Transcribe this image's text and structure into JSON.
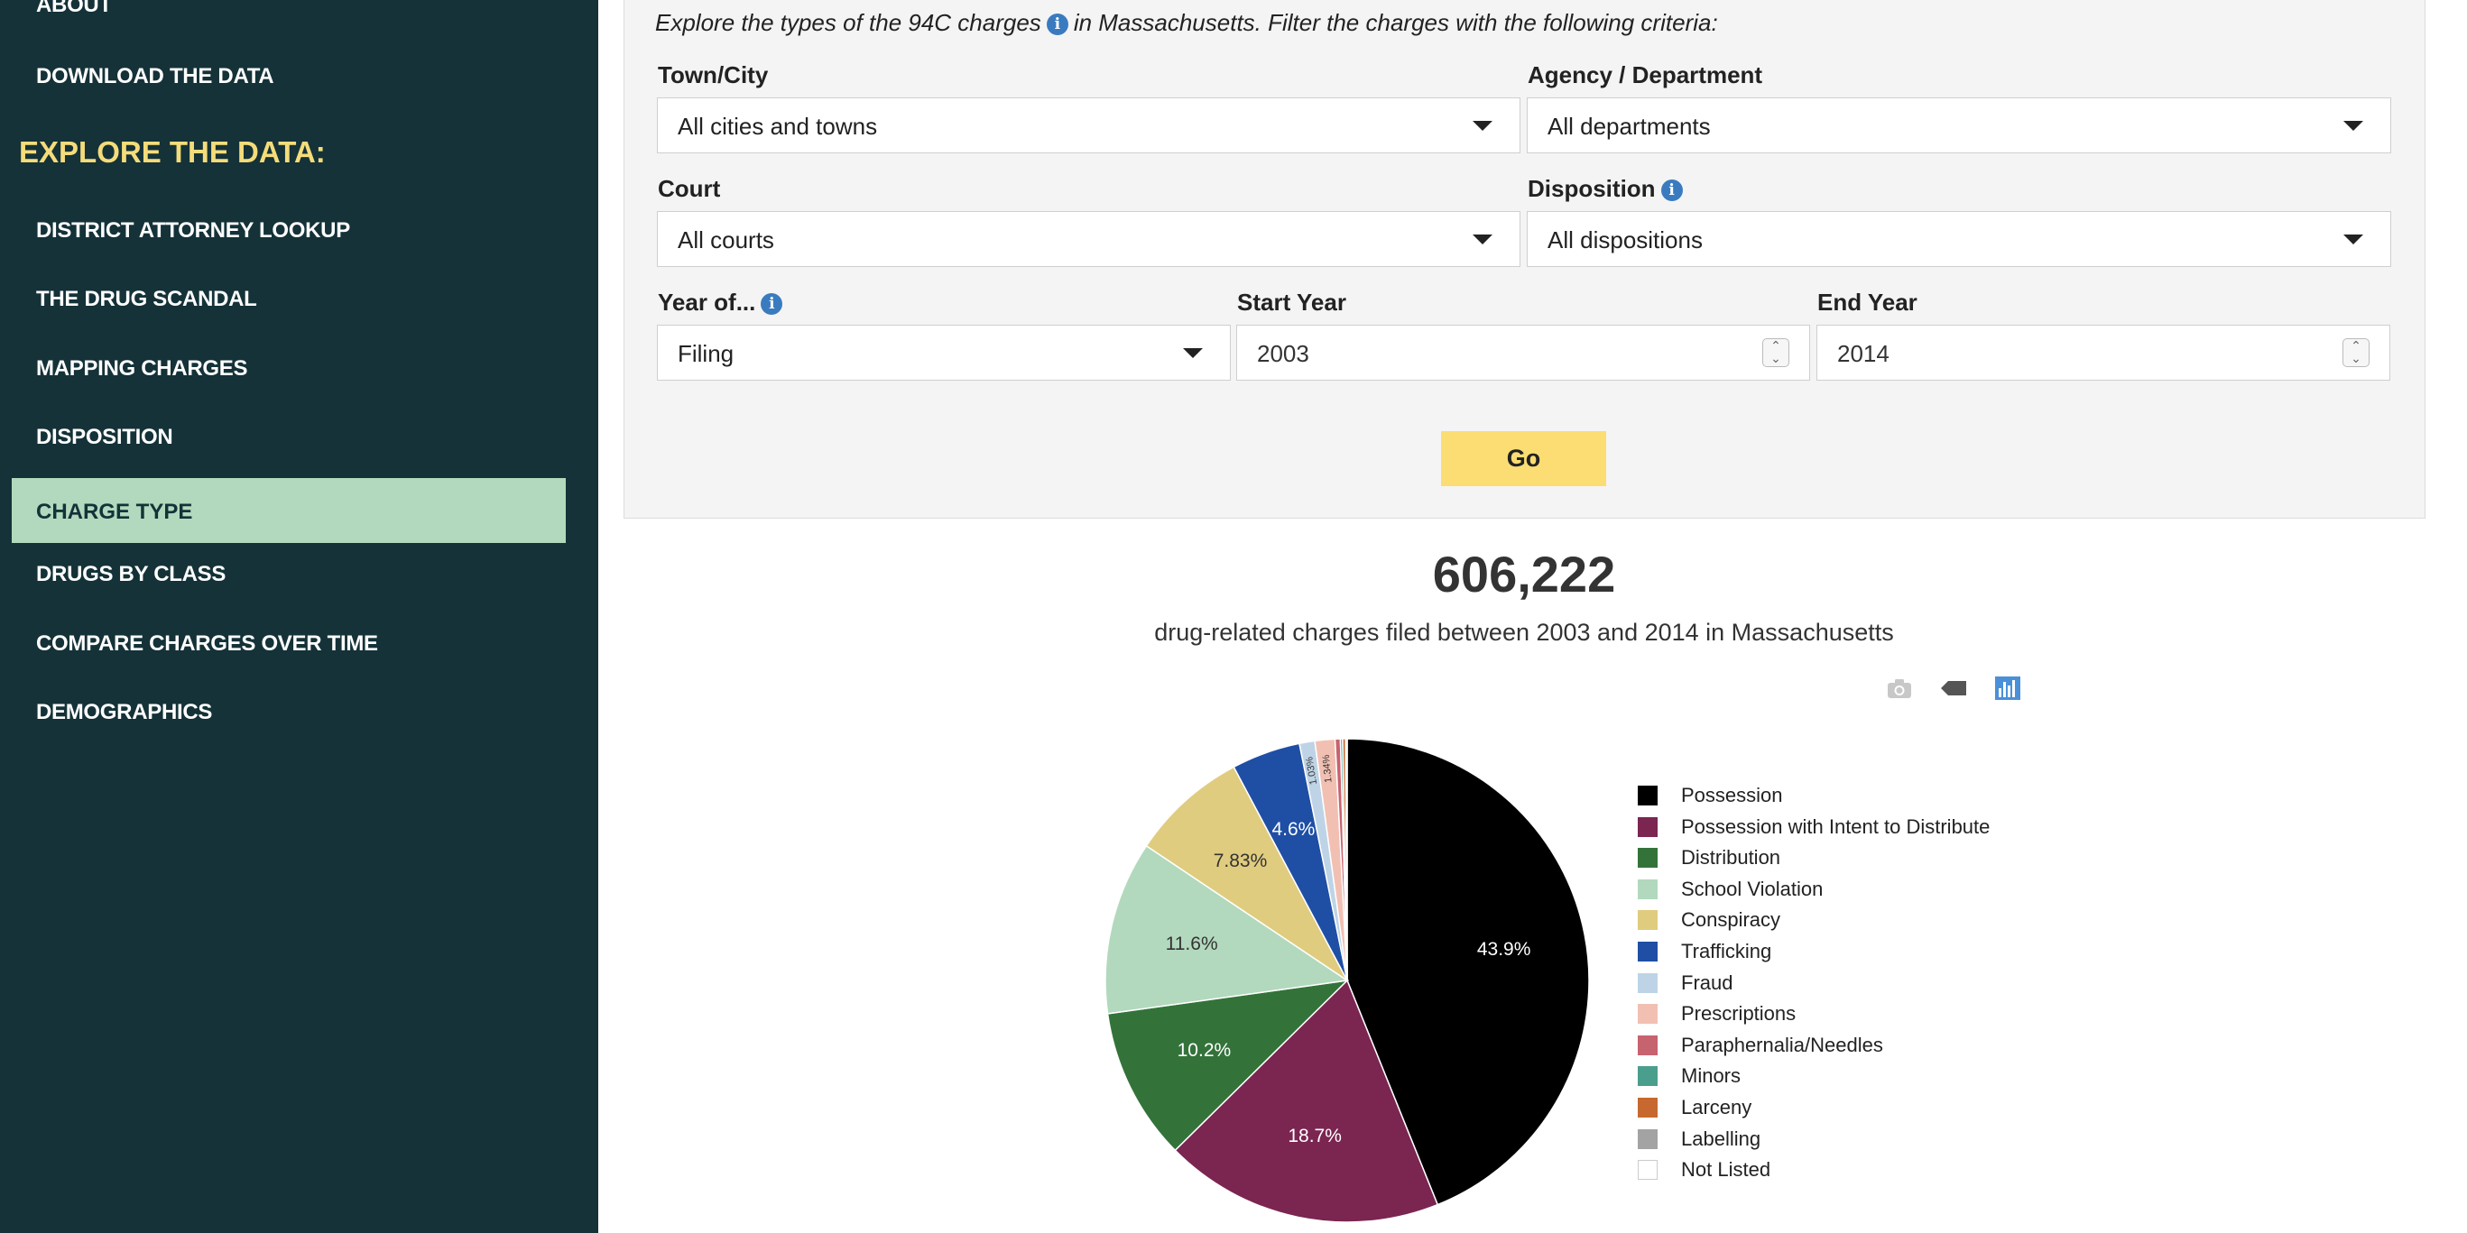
{
  "sidebar": {
    "about": "ABOUT",
    "download": "DOWNLOAD THE DATA",
    "explore_heading": "EXPLORE THE DATA:",
    "items": [
      {
        "label": "DISTRICT ATTORNEY LOOKUP"
      },
      {
        "label": "THE DRUG SCANDAL"
      },
      {
        "label": "MAPPING CHARGES"
      },
      {
        "label": "DISPOSITION"
      },
      {
        "label": "CHARGE TYPE",
        "active": true
      },
      {
        "label": "DRUGS BY CLASS"
      },
      {
        "label": "COMPARE CHARGES OVER TIME"
      },
      {
        "label": "DEMOGRAPHICS"
      }
    ],
    "colors": {
      "background": "#143238",
      "active": "#b2d9bd",
      "heading": "#f5dc7a"
    }
  },
  "filters": {
    "intro_before": "Explore the types of the 94C charges",
    "intro_after": "in Massachusetts. Filter the charges with the following criteria:",
    "town_label": "Town/City",
    "town_value": "All cities and towns",
    "agency_label": "Agency / Department",
    "agency_value": "All departments",
    "court_label": "Court",
    "court_value": "All courts",
    "disposition_label": "Disposition",
    "disposition_value": "All dispositions",
    "year_of_label": "Year of...",
    "year_of_value": "Filing",
    "start_label": "Start Year",
    "start_value": "2003",
    "end_label": "End Year",
    "end_value": "2014",
    "go_label": "Go",
    "info_icon": "info-icon",
    "go_color": "#fbdd73"
  },
  "summary": {
    "total": "606,222",
    "subtitle": "drug-related charges filed between 2003 and 2014 in Massachusetts"
  },
  "modebar": {
    "icons": [
      "camera-icon",
      "tag-icon",
      "bar-chart-icon"
    ]
  },
  "chart_data": {
    "type": "pie",
    "series": [
      {
        "name": "Possession",
        "value": 43.9,
        "label": "43.9%",
        "color": "#000000"
      },
      {
        "name": "Possession with Intent to Distribute",
        "value": 18.7,
        "label": "18.7%",
        "color": "#7b2551"
      },
      {
        "name": "Distribution",
        "value": 10.2,
        "label": "10.2%",
        "color": "#33733a"
      },
      {
        "name": "School Violation",
        "value": 11.6,
        "label": "11.6%",
        "color": "#b2d9bd"
      },
      {
        "name": "Conspiracy",
        "value": 7.83,
        "label": "7.83%",
        "color": "#e0cc7f"
      },
      {
        "name": "Trafficking",
        "value": 4.6,
        "label": "4.6%",
        "color": "#1f4fa5"
      },
      {
        "name": "Fraud",
        "value": 1.03,
        "label": "1.03%",
        "color": "#bed4e6"
      },
      {
        "name": "Prescriptions",
        "value": 1.34,
        "label": "1.34%",
        "color": "#f1c0b3"
      },
      {
        "name": "Paraphernalia/Needles",
        "value": 0.35,
        "label": "",
        "color": "#c7626f"
      },
      {
        "name": "Minors",
        "value": 0.15,
        "label": "",
        "color": "#4a9e8c"
      },
      {
        "name": "Larceny",
        "value": 0.2,
        "label": "",
        "color": "#c7692e"
      },
      {
        "name": "Labelling",
        "value": 0.05,
        "label": "",
        "color": "#a3a3a3"
      },
      {
        "name": "Not Listed",
        "value": 0.05,
        "label": "",
        "color": "#ffffff"
      }
    ],
    "legend_position": "right"
  }
}
